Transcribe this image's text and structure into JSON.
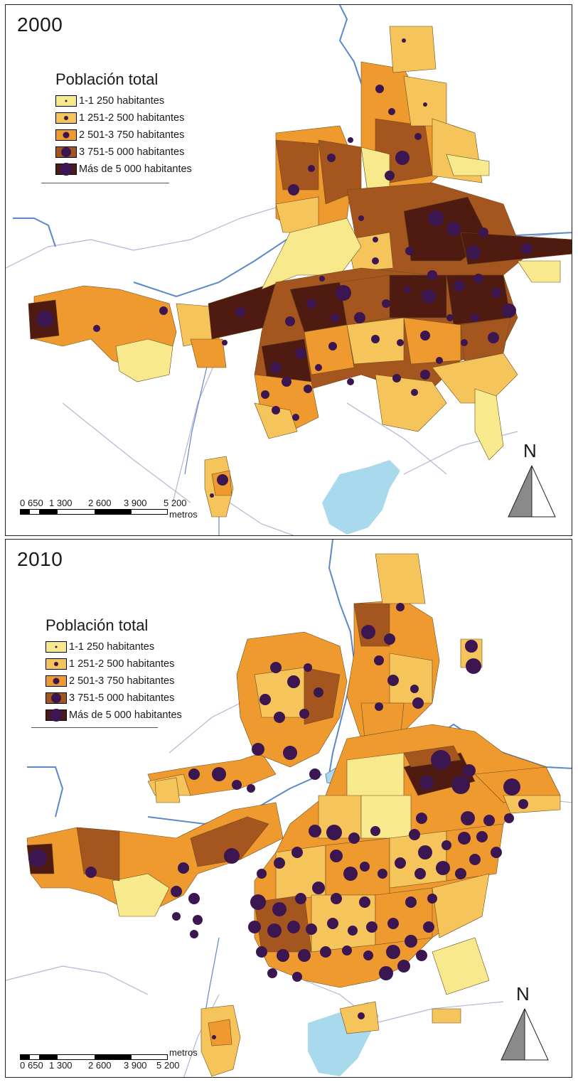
{
  "panels": [
    {
      "year": "2000",
      "legend_title": "Población total",
      "north_label": "N",
      "scale_ticks": [
        "0",
        "650",
        "1 300",
        "2 600",
        "3 900",
        "5 200"
      ],
      "scale_unit": "metros"
    },
    {
      "year": "2010",
      "legend_title": "Población total",
      "north_label": "N",
      "scale_ticks": [
        "0",
        "650",
        "1 300",
        "2 600",
        "3 900",
        "5 200"
      ],
      "scale_unit": "metros"
    }
  ],
  "legend_classes": [
    {
      "label": "1-1 250 habitantes",
      "color": "#f8ea8c"
    },
    {
      "label": "1 251-2 500 habitantes",
      "color": "#f5c45a"
    },
    {
      "label": "2 501-3 750 habitantes",
      "color": "#ef9a2e"
    },
    {
      "label": "3 751-5 000 habitantes",
      "color": "#a5561e"
    },
    {
      "label": "Más de 5 000 habitantes",
      "color": "#4f1a10"
    }
  ],
  "colors": {
    "river": "#5b89c6",
    "water_body": "#a9d9ec",
    "boundary": "#b5b5d8",
    "dot": "#3b1650",
    "map_frame": "#222222"
  }
}
